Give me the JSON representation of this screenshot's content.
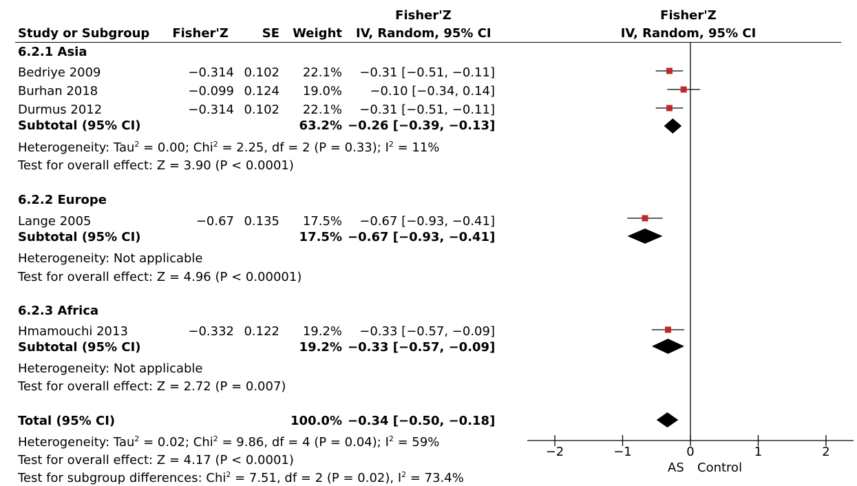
{
  "header": {
    "study_col": "Study or Subgroup",
    "fz_col": "Fisher'Z",
    "se_col": "SE",
    "weight_col": "Weight",
    "ci_col_top": "Fisher'Z",
    "ci_col_bottom": "IV, Random, 95% CI",
    "plot_col_top": "Fisher'Z",
    "plot_col_bottom": "IV, Random, 95% CI"
  },
  "groups": [
    {
      "title": "6.2.1 Asia",
      "studies": [
        {
          "name": "Bedriye 2009",
          "fz": "−0.314",
          "se": "0.102",
          "weight": "22.1%",
          "ci": "−0.31 [−0.51, −0.11]"
        },
        {
          "name": "Burhan 2018",
          "fz": "−0.099",
          "se": "0.124",
          "weight": "19.0%",
          "ci": "−0.10 [−0.34, 0.14]"
        },
        {
          "name": "Durmus 2012",
          "fz": "−0.314",
          "se": "0.102",
          "weight": "22.1%",
          "ci": "−0.31 [−0.51, −0.11]"
        }
      ],
      "subtotal_label": "Subtotal (95% CI)",
      "subtotal_weight": "63.2%",
      "subtotal_ci": "−0.26 [−0.39, −0.13]",
      "het_pre": "Heterogeneity: Tau",
      "het_mid1": " = 0.00; Chi",
      "het_mid2": " = 2.25, df = 2 (P = 0.33); I",
      "het_post": " = 11%",
      "het_sup": "2",
      "overall": "Test for overall effect: Z = 3.90 (P < 0.0001)"
    },
    {
      "title": "6.2.2 Europe",
      "studies": [
        {
          "name": "Lange 2005",
          "fz": "−0.67",
          "se": "0.135",
          "weight": "17.5%",
          "ci": "−0.67 [−0.93, −0.41]"
        }
      ],
      "subtotal_label": "Subtotal (95% CI)",
      "subtotal_weight": "17.5%",
      "subtotal_ci": "−0.67 [−0.93, −0.41]",
      "het_text": "Heterogeneity: Not applicable",
      "overall": "Test for overall effect: Z = 4.96 (P < 0.00001)"
    },
    {
      "title": "6.2.3 Africa",
      "studies": [
        {
          "name": "Hmamouchi 2013",
          "fz": "−0.332",
          "se": "0.122",
          "weight": "19.2%",
          "ci": "−0.33 [−0.57, −0.09]"
        }
      ],
      "subtotal_label": "Subtotal (95% CI)",
      "subtotal_weight": "19.2%",
      "subtotal_ci": "−0.33 [−0.57, −0.09]",
      "het_text": "Heterogeneity: Not applicable",
      "overall": "Test for overall effect: Z = 2.72 (P = 0.007)"
    }
  ],
  "total": {
    "label": "Total (95% CI)",
    "weight": "100.0%",
    "ci": "−0.34 [−0.50, −0.18]",
    "het_pre": "Heterogeneity: Tau",
    "het_mid1": " = 0.02; Chi",
    "het_mid2": " = 9.86, df = 4 (P = 0.04); I",
    "het_post": " = 59%",
    "het_sup": "2",
    "overall": "Test for overall effect: Z = 4.17 (P < 0.0001)",
    "subgroup_pre": "Test for subgroup differences: Chi",
    "subgroup_mid": " = 7.51, df = 2 (P = 0.02), I",
    "subgroup_post": " = 73.4%",
    "subgroup_sup": "2"
  },
  "axis": {
    "left_label": "AS",
    "right_label": "Control"
  },
  "chart_data": {
    "type": "forest",
    "xlim": [
      -2,
      2
    ],
    "ticks": [
      -2,
      -1,
      0,
      1,
      2
    ],
    "tick_labels": [
      "−2",
      "−1",
      "0",
      "1",
      "2"
    ],
    "null_line": 0,
    "studies": [
      {
        "name": "Bedriye 2009",
        "est": -0.31,
        "lo": -0.51,
        "hi": -0.11,
        "weight": 22.1
      },
      {
        "name": "Burhan 2018",
        "est": -0.1,
        "lo": -0.34,
        "hi": 0.14,
        "weight": 19.0
      },
      {
        "name": "Durmus 2012",
        "est": -0.31,
        "lo": -0.51,
        "hi": -0.11,
        "weight": 22.1
      },
      {
        "name": "Lange 2005",
        "est": -0.67,
        "lo": -0.93,
        "hi": -0.41,
        "weight": 17.5
      },
      {
        "name": "Hmamouchi 2013",
        "est": -0.33,
        "lo": -0.57,
        "hi": -0.09,
        "weight": 19.2
      }
    ],
    "diamonds": [
      {
        "name": "Asia subtotal",
        "est": -0.26,
        "lo": -0.39,
        "hi": -0.13
      },
      {
        "name": "Europe subtotal",
        "est": -0.67,
        "lo": -0.93,
        "hi": -0.41
      },
      {
        "name": "Africa subtotal",
        "est": -0.33,
        "lo": -0.57,
        "hi": -0.09
      },
      {
        "name": "Total",
        "est": -0.34,
        "lo": -0.5,
        "hi": -0.18
      }
    ],
    "square_color": "#c0292b"
  }
}
